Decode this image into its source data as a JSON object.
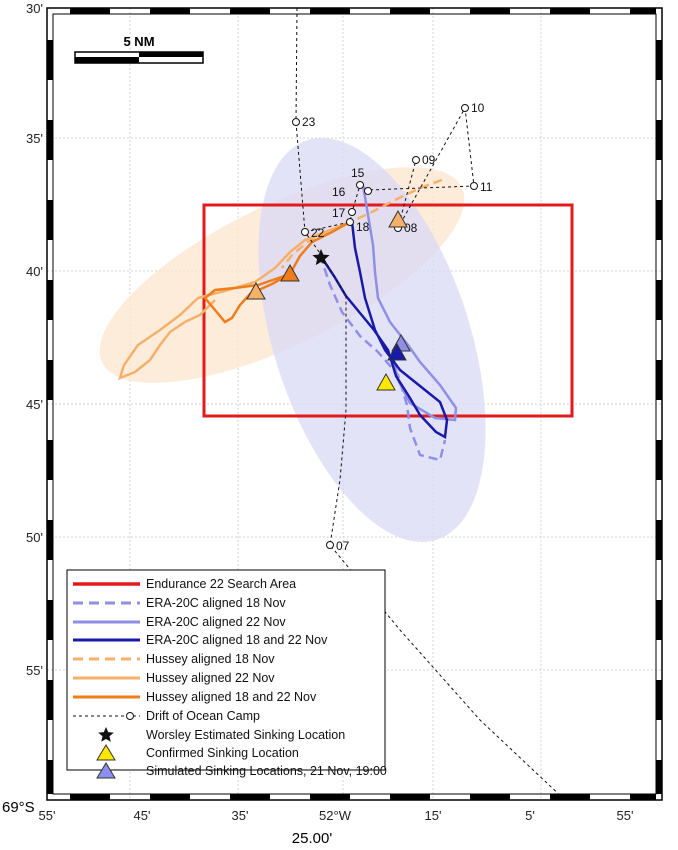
{
  "map": {
    "scale_bar_label": "5 NM",
    "corner_lat_label": "69°S",
    "bottom_longitude_label": "25.00'",
    "lat_ticks": [
      "30'",
      "35'",
      "40'",
      "45'",
      "50'",
      "55'"
    ],
    "lon_ticks": [
      "55'",
      "45'",
      "35'",
      "52°W",
      "15'",
      "5'",
      "55'"
    ],
    "colors": {
      "search_area": "#e31a1c",
      "era_light": "#8f8fe6",
      "era_dark": "#1a1aa8",
      "hussey_light": "#f5b06a",
      "hussey_dark": "#ee7d1a",
      "era_ellipse": "#d9daf5",
      "hussey_ellipse": "#fde6cf",
      "confirmed": "#ffe800",
      "simulated": "#8a8ff0"
    },
    "icons": {
      "worsley_marker": "star-icon",
      "confirmed_marker": "yellow-triangle-icon",
      "simulated_marker": "blue-triangle-icon",
      "camp_marker": "open-circle-icon"
    }
  },
  "camp_labels": [
    "23",
    "10",
    "09",
    "11",
    "15",
    "16",
    "17",
    "18",
    "08",
    "22",
    "07"
  ],
  "legend": [
    {
      "key": "search",
      "label": "Endurance 22 Search Area"
    },
    {
      "key": "era18",
      "label": "ERA-20C aligned 18 Nov"
    },
    {
      "key": "era22",
      "label": "ERA-20C aligned 22 Nov"
    },
    {
      "key": "era1822",
      "label": "ERA-20C aligned 18 and 22 Nov"
    },
    {
      "key": "hus18",
      "label": "Hussey aligned 18 Nov"
    },
    {
      "key": "hus22",
      "label": "Hussey aligned 22 Nov"
    },
    {
      "key": "hus1822",
      "label": "Hussey aligned 18 and 22 Nov"
    },
    {
      "key": "drift",
      "label": "Drift of Ocean Camp"
    },
    {
      "key": "worsley",
      "label": "Worsley Estimated Sinking Location"
    },
    {
      "key": "confirmed",
      "label": "Confirmed Sinking Location"
    },
    {
      "key": "simulated",
      "label": "Simulated Sinking Locations, 21 Nov, 19:00"
    }
  ]
}
